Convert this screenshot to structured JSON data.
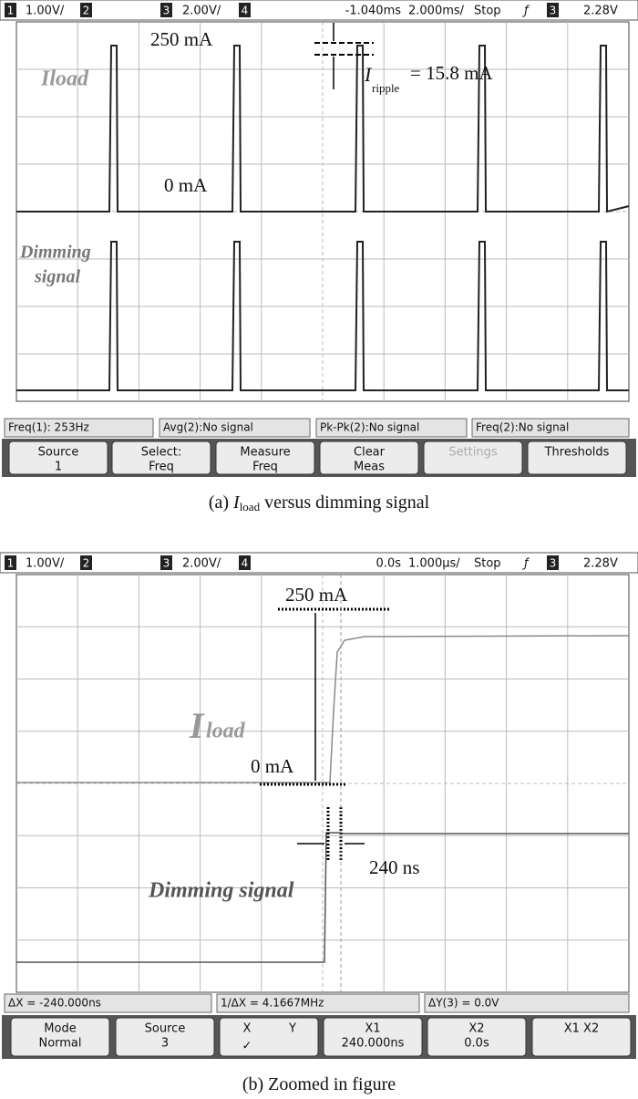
{
  "panels": [
    {
      "header": {
        "ch1": "1",
        "ch1_scale": "1.00V/",
        "ch2": "2",
        "ch3": "3",
        "ch3_scale": "2.00V/",
        "ch4": "4",
        "delay": "-1.040ms",
        "timebase": "2.000ms/",
        "state": "Stop",
        "trigger_slope": "ƒ",
        "trigger_channel": "3",
        "trigger_level": "2.28V"
      },
      "annotations": {
        "high": "250 mA",
        "trace1_name": "Iload",
        "low": "0 mA",
        "ripple_symbol": "I",
        "ripple_sub": "ripple",
        "ripple_value": "= 15.8 mA",
        "trace2_line1": "Dimming",
        "trace2_line2": "signal"
      },
      "measurements": [
        "Freq(1): 253Hz",
        "Avg(2):No signal",
        "Pk-Pk(2):No signal",
        "Freq(2):No signal"
      ],
      "softkeys": [
        [
          "Source",
          "1"
        ],
        [
          "Select:",
          "Freq"
        ],
        [
          "Measure",
          "Freq"
        ],
        [
          "Clear",
          "Meas"
        ],
        [
          "Settings"
        ],
        [
          "Thresholds"
        ]
      ],
      "caption": [
        "(a) ",
        "I",
        "load",
        " versus dimming signal"
      ]
    },
    {
      "header": {
        "ch1": "1",
        "ch1_scale": "1.00V/",
        "ch2": "2",
        "ch3": "3",
        "ch3_scale": "2.00V/",
        "ch4": "4",
        "delay": "0.0s",
        "timebase": "1.000µs/",
        "state": "Stop",
        "trigger_slope": "ƒ",
        "trigger_channel": "3",
        "trigger_level": "2.28V"
      },
      "annotations": {
        "high": "250 mA",
        "trace1_symbol": "I",
        "trace1_sub": "load",
        "low": "0 mA",
        "delay_value": "240 ns",
        "trace2_name": "Dimming signal"
      },
      "measurements": [
        "ΔX = -240.000ns",
        "1/ΔX = 4.1667MHz",
        "ΔY(3) = 0.0V"
      ],
      "softkeys": [
        [
          "Mode",
          "Normal"
        ],
        [
          "Source",
          "3"
        ],
        [
          "X",
          "Y",
          "✓"
        ],
        [
          "X1",
          "240.000ns"
        ],
        [
          "X2",
          "0.0s"
        ],
        [
          "X1 X2"
        ]
      ],
      "caption": [
        "(b) Zoomed in figure"
      ]
    }
  ]
}
